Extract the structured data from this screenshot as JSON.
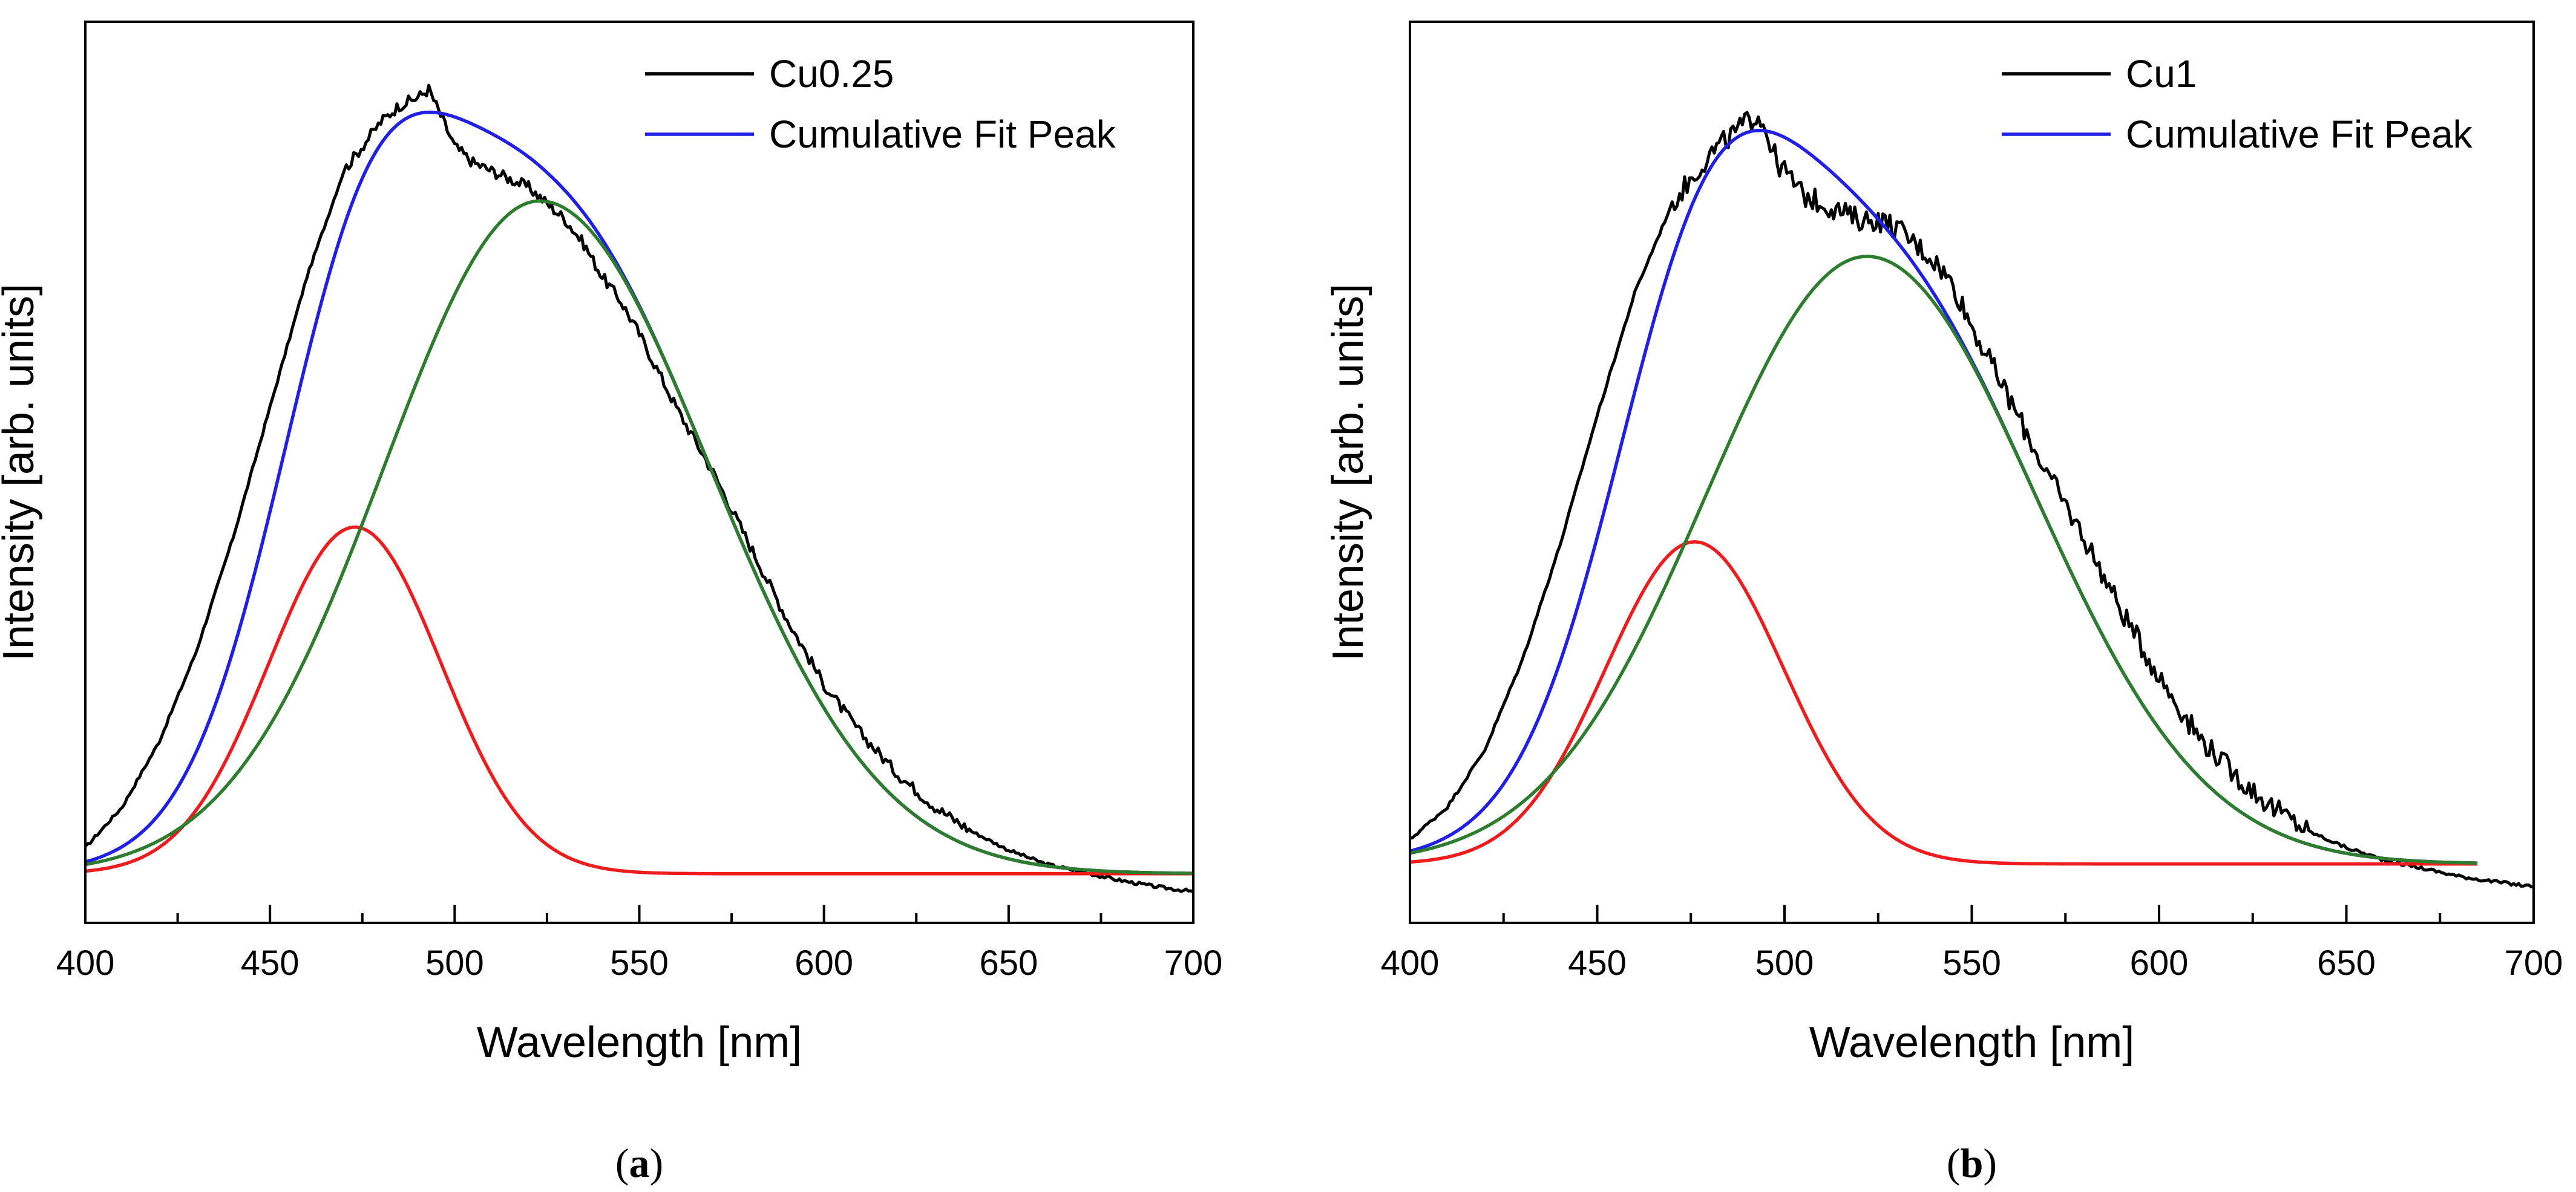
{
  "chart_data": [
    {
      "type": "line",
      "panel_label": "a",
      "title": "",
      "xlabel": "Wavelength [nm]",
      "ylabel": "Intensity [arb. units]",
      "xlim": [
        400,
        700
      ],
      "ylim": [
        0,
        1.0
      ],
      "xticks": [
        400,
        450,
        500,
        550,
        600,
        650,
        700
      ],
      "yticks_visible": false,
      "legend": {
        "placement": "top-right",
        "entries": [
          "Cu0.25",
          "Cumulative Fit Peak"
        ]
      },
      "series": [
        {
          "name": "Cu0.25",
          "color": "#000000",
          "role": "measured",
          "x": [
            400,
            410,
            420,
            430,
            440,
            450,
            460,
            470,
            480,
            485,
            490,
            493,
            495,
            498,
            500,
            505,
            510,
            515,
            520,
            525,
            530,
            535,
            540,
            545,
            550,
            560,
            570,
            580,
            590,
            600,
            610,
            620,
            630,
            640,
            650,
            660,
            670,
            680,
            690,
            700
          ],
          "y": [
            0.07,
            0.12,
            0.2,
            0.31,
            0.45,
            0.61,
            0.77,
            0.9,
            0.96,
            0.98,
            0.99,
            1.0,
            0.98,
            0.95,
            0.93,
            0.91,
            0.9,
            0.89,
            0.88,
            0.86,
            0.84,
            0.81,
            0.77,
            0.74,
            0.7,
            0.61,
            0.53,
            0.44,
            0.35,
            0.27,
            0.21,
            0.16,
            0.12,
            0.09,
            0.067,
            0.05,
            0.04,
            0.03,
            0.022,
            0.016
          ]
        },
        {
          "name": "Cumulative Fit Peak",
          "color": "#1f1fe6",
          "role": "cumulative_fit",
          "peaks": [
            {
              "center": 473,
              "fwhm": 55,
              "amplitude": 0.425
            },
            {
              "center": 523,
              "sigma_left": 42,
              "sigma_right": 46,
              "amplitude": 0.825
            }
          ],
          "baseline": 0.038
        },
        {
          "name": "Fit peak 1",
          "color": "#ee1c1c",
          "role": "component",
          "center": 473,
          "fwhm": 55,
          "amplitude": 0.425,
          "baseline": 0.038
        },
        {
          "name": "Fit peak 2",
          "color": "#2e7d2e",
          "role": "component",
          "center": 523,
          "sigma_left": 42,
          "sigma_right": 46,
          "amplitude": 0.825,
          "baseline": 0.038
        }
      ]
    },
    {
      "type": "line",
      "panel_label": "b",
      "title": "",
      "xlabel": "Wavelength [nm]",
      "ylabel": "Intensity [arb. units]",
      "xlim": [
        400,
        700
      ],
      "ylim": [
        0,
        1.0
      ],
      "xticks": [
        400,
        450,
        500,
        550,
        600,
        650,
        700
      ],
      "yticks_visible": false,
      "legend": {
        "placement": "top-right",
        "entries": [
          "Cu1",
          "Cumulative Fit Peak"
        ]
      },
      "series": [
        {
          "name": "Cu1",
          "color": "#000000",
          "role": "measured",
          "x": [
            400,
            410,
            420,
            430,
            440,
            450,
            460,
            470,
            480,
            485,
            490,
            493,
            495,
            498,
            500,
            505,
            510,
            515,
            520,
            525,
            530,
            535,
            540,
            545,
            550,
            560,
            570,
            580,
            590,
            600,
            610,
            620,
            630,
            640,
            650,
            660,
            670,
            680,
            690,
            700
          ],
          "y": [
            0.08,
            0.12,
            0.19,
            0.3,
            0.44,
            0.6,
            0.75,
            0.86,
            0.92,
            0.94,
            0.96,
            0.97,
            0.95,
            0.91,
            0.9,
            0.87,
            0.86,
            0.85,
            0.84,
            0.84,
            0.83,
            0.81,
            0.79,
            0.76,
            0.71,
            0.62,
            0.53,
            0.45,
            0.36,
            0.28,
            0.21,
            0.16,
            0.12,
            0.09,
            0.07,
            0.055,
            0.045,
            0.035,
            0.028,
            0.022
          ]
        },
        {
          "name": "Cumulative Fit Peak",
          "color": "#1f1fe6",
          "role": "cumulative_fit",
          "x_max": 685,
          "peaks": [
            {
              "center": 476,
              "fwhm": 56,
              "amplitude": 0.395
            },
            {
              "center": 522,
              "sigma_left": 43,
              "sigma_right": 45,
              "amplitude": 0.745
            }
          ],
          "baseline": 0.05
        },
        {
          "name": "Fit peak 1",
          "color": "#ee1c1c",
          "role": "component",
          "x_max": 685,
          "center": 476,
          "fwhm": 56,
          "amplitude": 0.395,
          "baseline": 0.05
        },
        {
          "name": "Fit peak 2",
          "color": "#2e7d2e",
          "role": "component",
          "x_max": 685,
          "center": 522,
          "sigma_left": 43,
          "sigma_right": 45,
          "amplitude": 0.745,
          "baseline": 0.05
        }
      ]
    }
  ]
}
